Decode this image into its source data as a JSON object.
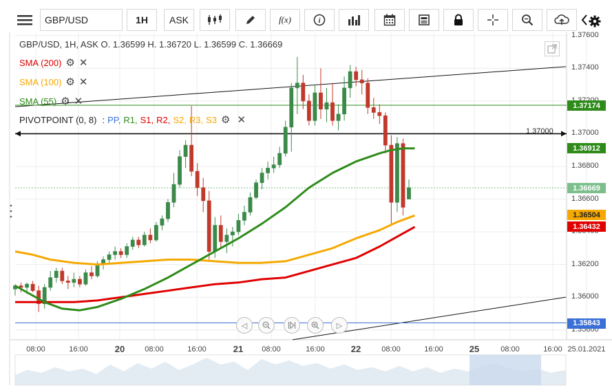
{
  "toolbar": {
    "menu_icon": "hamburger-icon",
    "symbol": "GBP/USD",
    "timeframe": "1H",
    "price_type": "ASK",
    "chart_type_icon": "candlestick-icon",
    "draw_icon": "pencil-icon",
    "fx_label": "f(x)",
    "info_icon": "info-icon",
    "volume_icon": "bar-chart-icon",
    "calendar_icon": "calendar-icon",
    "news_icon": "news-icon",
    "lock_icon": "lock-icon",
    "crosshair_icon": "crosshair-icon",
    "zoom_icon": "zoom-icon",
    "cloud_icon": "cloud-upload-icon",
    "prev_icon": "chevron-left-icon",
    "next_icon": "chevron-right-icon",
    "settings_icon": "gear-icon"
  },
  "overlay": {
    "ohlc_header": "GBP/USD, 1H, ASK    O. 1.36599 H. 1.36720 L. 1.36599 C. 1.36669",
    "indicators": [
      {
        "label": "SMA (200)",
        "color": "#e00000"
      },
      {
        "label": "SMA (100)",
        "color": "#f5a800"
      },
      {
        "label": "SMA (55)",
        "color": "#2e8b1a"
      }
    ],
    "pivot": {
      "label": "PIVOTPOINT (0, 8)",
      "sep": ":",
      "levels": [
        {
          "label": "PP,",
          "color": "#3a6fd8"
        },
        {
          "label": "R1,",
          "color": "#2e8b1a"
        },
        {
          "label": "S1,",
          "color": "#e00000"
        },
        {
          "label": "R2,",
          "color": "#e00000"
        },
        {
          "label": "S2,",
          "color": "#f5a800"
        },
        {
          "label": "R3,",
          "color": "#f5a800"
        },
        {
          "label": "S3",
          "color": "#f5a800"
        }
      ]
    },
    "hline_label": "1.37000"
  },
  "colors": {
    "up": "#3c8a4a",
    "down": "#c0392b",
    "grid": "#ececec"
  },
  "chart_data": {
    "type": "candlestick",
    "symbol": "GBP/USD",
    "interval": "1H",
    "ohlc": {
      "open": 1.36599,
      "high": 1.3672,
      "low": 1.36599,
      "close": 1.36669
    },
    "y_ticks": [
      "1.37600",
      "1.37400",
      "1.37200",
      "1.37000",
      "1.36800",
      "1.36600",
      "1.36400",
      "1.36200",
      "1.36000",
      "1.35800"
    ],
    "x_ticks": [
      {
        "label": "08:00",
        "big": false
      },
      {
        "label": "16:00",
        "big": false
      },
      {
        "label": "20",
        "big": true
      },
      {
        "label": "08:00",
        "big": false
      },
      {
        "label": "16:00",
        "big": false
      },
      {
        "label": "21",
        "big": true
      },
      {
        "label": "08:00",
        "big": false
      },
      {
        "label": "16:00",
        "big": false
      },
      {
        "label": "22",
        "big": true
      },
      {
        "label": "08:00",
        "big": false
      },
      {
        "label": "16:00",
        "big": false
      },
      {
        "label": "25",
        "big": true
      },
      {
        "label": "08:00",
        "big": false
      },
      {
        "label": "16:00",
        "big": false
      },
      {
        "label": "25.01.2021",
        "big": false
      }
    ],
    "ylim": [
      1.3574,
      1.3762
    ],
    "price_labels": [
      {
        "value": "1.37174",
        "price": 1.37174,
        "color": "#2e8b1a"
      },
      {
        "value": "1.36912",
        "price": 1.36912,
        "color": "#2e8b1a"
      },
      {
        "value": "1.36669",
        "price": 1.36669,
        "color": "#7cbf8c"
      },
      {
        "value": "1.36504",
        "price": 1.36504,
        "color": "#f5a800"
      },
      {
        "value": "1.36432",
        "price": 1.36432,
        "color": "#e00000"
      },
      {
        "value": "1.35843",
        "price": 1.35843,
        "color": "#3a6fd8"
      }
    ],
    "levels": {
      "horizontal_line": 1.37,
      "r1": 1.37174,
      "pp": 1.35843,
      "current": 1.36669
    },
    "candles": [
      [
        1.3605,
        1.3608,
        1.3601,
        1.3607
      ],
      [
        1.3607,
        1.3609,
        1.3603,
        1.3606
      ],
      [
        1.3606,
        1.3609,
        1.3602,
        1.3608
      ],
      [
        1.3608,
        1.361,
        1.3603,
        1.3604
      ],
      [
        1.3604,
        1.3607,
        1.3591,
        1.3596
      ],
      [
        1.3596,
        1.3608,
        1.3593,
        1.3606
      ],
      [
        1.3606,
        1.3616,
        1.3604,
        1.3612
      ],
      [
        1.3612,
        1.3618,
        1.3609,
        1.3616
      ],
      [
        1.3616,
        1.3618,
        1.3608,
        1.361
      ],
      [
        1.361,
        1.3613,
        1.3605,
        1.3609
      ],
      [
        1.3609,
        1.3615,
        1.3606,
        1.3611
      ],
      [
        1.3611,
        1.3613,
        1.3606,
        1.3608
      ],
      [
        1.3608,
        1.3617,
        1.3607,
        1.3615
      ],
      [
        1.3615,
        1.3619,
        1.3611,
        1.3613
      ],
      [
        1.3613,
        1.3622,
        1.3612,
        1.362
      ],
      [
        1.362,
        1.3625,
        1.3617,
        1.3623
      ],
      [
        1.3623,
        1.3628,
        1.362,
        1.3626
      ],
      [
        1.3626,
        1.3631,
        1.3623,
        1.3628
      ],
      [
        1.3628,
        1.363,
        1.3624,
        1.3626
      ],
      [
        1.3626,
        1.3633,
        1.3624,
        1.3631
      ],
      [
        1.3631,
        1.3637,
        1.3629,
        1.3635
      ],
      [
        1.3635,
        1.3637,
        1.363,
        1.3632
      ],
      [
        1.3632,
        1.364,
        1.3631,
        1.3638
      ],
      [
        1.3638,
        1.3642,
        1.3633,
        1.3635
      ],
      [
        1.3635,
        1.3646,
        1.3634,
        1.3644
      ],
      [
        1.3644,
        1.365,
        1.3641,
        1.3648
      ],
      [
        1.3648,
        1.366,
        1.3646,
        1.3658
      ],
      [
        1.3658,
        1.3676,
        1.3655,
        1.3669
      ],
      [
        1.3669,
        1.369,
        1.3667,
        1.3686
      ],
      [
        1.3686,
        1.3696,
        1.3679,
        1.3693
      ],
      [
        1.3693,
        1.3717,
        1.3674,
        1.3677
      ],
      [
        1.3677,
        1.3682,
        1.3662,
        1.3667
      ],
      [
        1.3667,
        1.3673,
        1.3652,
        1.3659
      ],
      [
        1.3659,
        1.3665,
        1.3623,
        1.3628
      ],
      [
        1.3628,
        1.3649,
        1.3624,
        1.3644
      ],
      [
        1.3644,
        1.365,
        1.363,
        1.3634
      ],
      [
        1.3634,
        1.3642,
        1.3627,
        1.3638
      ],
      [
        1.3638,
        1.3643,
        1.3631,
        1.364
      ],
      [
        1.364,
        1.3651,
        1.3638,
        1.3647
      ],
      [
        1.3647,
        1.3656,
        1.3644,
        1.3652
      ],
      [
        1.3652,
        1.3664,
        1.365,
        1.3661
      ],
      [
        1.3661,
        1.3672,
        1.366,
        1.367
      ],
      [
        1.367,
        1.3679,
        1.3666,
        1.3676
      ],
      [
        1.3676,
        1.3683,
        1.3672,
        1.3679
      ],
      [
        1.3679,
        1.3686,
        1.3676,
        1.3681
      ],
      [
        1.3681,
        1.3692,
        1.3679,
        1.3688
      ],
      [
        1.3688,
        1.3708,
        1.3686,
        1.3704
      ],
      [
        1.3704,
        1.3731,
        1.3689,
        1.3728
      ],
      [
        1.3728,
        1.3747,
        1.3712,
        1.3731
      ],
      [
        1.3731,
        1.3736,
        1.3715,
        1.372
      ],
      [
        1.372,
        1.3724,
        1.3705,
        1.3708
      ],
      [
        1.3708,
        1.373,
        1.3705,
        1.3725
      ],
      [
        1.3725,
        1.374,
        1.3709,
        1.3715
      ],
      [
        1.3715,
        1.3728,
        1.3707,
        1.3719
      ],
      [
        1.3719,
        1.3731,
        1.3705,
        1.3708
      ],
      [
        1.3708,
        1.3718,
        1.3702,
        1.3712
      ],
      [
        1.3712,
        1.3735,
        1.3708,
        1.3728
      ],
      [
        1.3728,
        1.3742,
        1.3722,
        1.3738
      ],
      [
        1.3738,
        1.3741,
        1.3729,
        1.3733
      ],
      [
        1.3733,
        1.3739,
        1.3724,
        1.3731
      ],
      [
        1.3731,
        1.3734,
        1.3712,
        1.3716
      ],
      [
        1.3716,
        1.3722,
        1.3709,
        1.3713
      ],
      [
        1.3713,
        1.3718,
        1.3706,
        1.3711
      ],
      [
        1.3711,
        1.3713,
        1.3688,
        1.3693
      ],
      [
        1.3693,
        1.3699,
        1.3645,
        1.3658
      ],
      [
        1.3658,
        1.3698,
        1.3652,
        1.3694
      ],
      [
        1.3694,
        1.3697,
        1.365,
        1.3655
      ],
      [
        1.366,
        1.3672,
        1.366,
        1.3667
      ]
    ]
  }
}
